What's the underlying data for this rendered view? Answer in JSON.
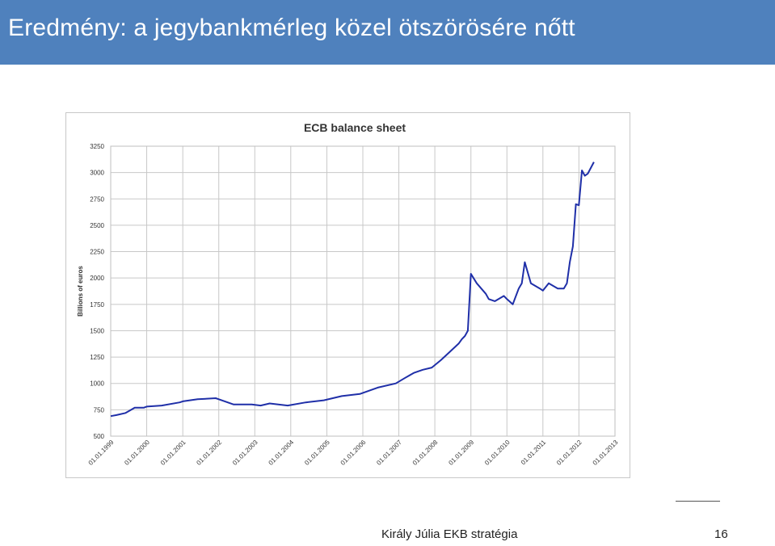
{
  "slide": {
    "title": "Eredmény: a jegybankmérleg közel ötszörösére nőtt"
  },
  "footer": {
    "author": "Király Júlia EKB stratégia",
    "page_number": "16"
  },
  "colors": {
    "title_bar": "#4f81bd",
    "series_line": "#1f2fa8",
    "grid": "#c8c8c8"
  },
  "chart_data": {
    "type": "line",
    "title": "ECB balance sheet",
    "ylabel": "Billions of euros",
    "xlabel": "",
    "ylim": [
      500,
      3250
    ],
    "yticks": [
      500,
      750,
      1000,
      1250,
      1500,
      1750,
      2000,
      2250,
      2500,
      2750,
      3000,
      3250
    ],
    "xticks": [
      "01.01.1999",
      "01.01.2000",
      "01.01.2001",
      "01.01.2002",
      "01.01.2003",
      "01.01.2004",
      "01.01.2005",
      "01.01.2006",
      "01.01.2007",
      "01.01.2008",
      "01.01.2009",
      "01.01.2010",
      "01.01.2011",
      "01.01.2012",
      "01.01.2013"
    ],
    "grid": true,
    "legend": false,
    "series": [
      {
        "x": [
          "1999-01-01",
          "1999-03-01",
          "1999-06-01",
          "1999-09-01",
          "1999-12-01",
          "2000-01-01",
          "2000-06-01",
          "2000-12-01",
          "2001-01-01",
          "2001-06-01",
          "2001-12-01",
          "2002-01-01",
          "2002-06-01",
          "2002-12-01",
          "2003-03-01",
          "2003-06-01",
          "2003-12-01",
          "2004-06-01",
          "2004-12-01",
          "2005-06-01",
          "2005-12-01",
          "2006-06-01",
          "2006-12-01",
          "2007-03-01",
          "2007-06-01",
          "2007-09-01",
          "2007-12-01",
          "2008-03-01",
          "2008-06-01",
          "2008-09-01",
          "2008-10-01",
          "2008-11-01",
          "2008-12-01",
          "2009-01-01",
          "2009-03-01",
          "2009-06-01",
          "2009-07-01",
          "2009-09-01",
          "2009-12-01",
          "2010-01-01",
          "2010-03-01",
          "2010-05-01",
          "2010-06-01",
          "2010-07-01",
          "2010-09-01",
          "2010-12-01",
          "2011-01-01",
          "2011-03-01",
          "2011-06-01",
          "2011-08-01",
          "2011-09-01",
          "2011-10-01",
          "2011-11-01",
          "2011-12-01",
          "2012-01-01",
          "2012-02-01",
          "2012-03-01",
          "2012-04-01",
          "2012-06-01"
        ],
        "values": [
          690,
          700,
          720,
          770,
          770,
          780,
          790,
          820,
          830,
          850,
          860,
          850,
          800,
          800,
          790,
          810,
          790,
          820,
          840,
          880,
          900,
          960,
          1000,
          1050,
          1100,
          1130,
          1150,
          1220,
          1300,
          1380,
          1420,
          1450,
          1500,
          2040,
          1950,
          1850,
          1800,
          1780,
          1830,
          1800,
          1750,
          1900,
          1950,
          2150,
          1950,
          1900,
          1880,
          1950,
          1900,
          1900,
          1950,
          2150,
          2300,
          2700,
          2690,
          3020,
          2970,
          2990,
          3100
        ]
      }
    ]
  }
}
